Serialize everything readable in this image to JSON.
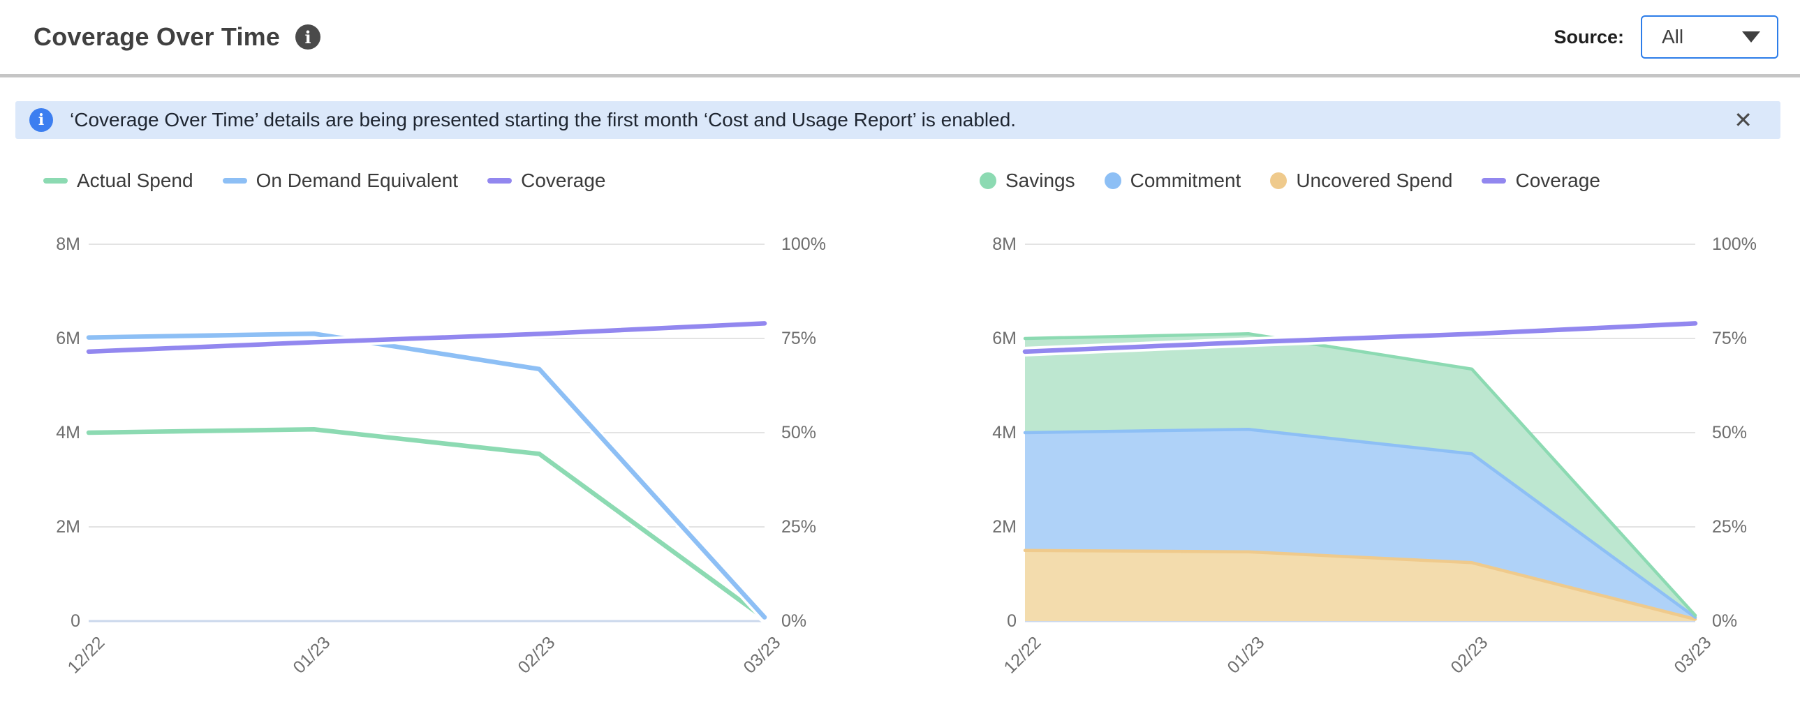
{
  "header": {
    "title": "Coverage Over Time",
    "source_label": "Source:",
    "source_value": "All"
  },
  "banner": {
    "message": "‘Coverage Over Time’ details are being presented starting the first month ‘Cost and Usage Report’ is enabled.",
    "close_icon": "✕"
  },
  "ui_colors": {
    "accent-blue": "#2C7DE9",
    "banner-bg": "#DBE8FA",
    "banner-icon-blue": "#3C7EF0"
  },
  "chart_data": [
    {
      "id": "spend-lines",
      "type": "line",
      "x": [
        "12/22",
        "01/23",
        "02/23",
        "03/23"
      ],
      "left_axis": {
        "tick_labels": [
          "8M",
          "6M",
          "4M",
          "2M",
          "0"
        ],
        "max": 8,
        "unit": "spend (millions)"
      },
      "right_axis": {
        "tick_labels": [
          "100%",
          "75%",
          "50%",
          "25%",
          "0%"
        ],
        "max": 100,
        "unit": "coverage %"
      },
      "grid": true,
      "legend_position": "top-left",
      "series": [
        {
          "name": "Actual Spend",
          "axis": "left",
          "marker": "line",
          "color": "#8CDAB2",
          "values": [
            4.0,
            4.07,
            3.55,
            0.06
          ]
        },
        {
          "name": "On Demand Equivalent",
          "axis": "left",
          "marker": "line",
          "color": "#8DBFF5",
          "values": [
            6.02,
            6.1,
            5.35,
            0.08
          ]
        },
        {
          "name": "Coverage",
          "axis": "right",
          "marker": "line",
          "color": "#9287EF",
          "values": [
            71.5,
            74.0,
            76.2,
            79.0
          ]
        }
      ]
    },
    {
      "id": "coverage-breakdown",
      "type": "area",
      "x": [
        "12/22",
        "01/23",
        "02/23",
        "03/23"
      ],
      "left_axis": {
        "tick_labels": [
          "8M",
          "6M",
          "4M",
          "2M",
          "0"
        ],
        "max": 8,
        "unit": "spend (millions)"
      },
      "right_axis": {
        "tick_labels": [
          "100%",
          "75%",
          "50%",
          "25%",
          "0%"
        ],
        "max": 100,
        "unit": "coverage %"
      },
      "grid": true,
      "legend_position": "top-left",
      "series": [
        {
          "name": "Savings",
          "axis": "left",
          "marker": "dot",
          "stack_index": 2,
          "color": "#8CDAB2",
          "fill": "#BDE7D0",
          "values": [
            2.0,
            2.03,
            1.8,
            0.04
          ]
        },
        {
          "name": "Commitment",
          "axis": "left",
          "marker": "dot",
          "stack_index": 1,
          "color": "#8DBFF5",
          "fill": "#AFD2F8",
          "values": [
            2.5,
            2.6,
            2.31,
            0.04
          ]
        },
        {
          "name": "Uncovered Spend",
          "axis": "left",
          "marker": "dot",
          "stack_index": 0,
          "color": "#EFCA8C",
          "fill": "#F3DCAD",
          "values": [
            1.5,
            1.47,
            1.24,
            0.04
          ]
        },
        {
          "name": "Coverage",
          "axis": "right",
          "marker": "line",
          "color": "#9287EF",
          "values": [
            71.5,
            74.0,
            76.2,
            79.0
          ]
        }
      ]
    }
  ]
}
